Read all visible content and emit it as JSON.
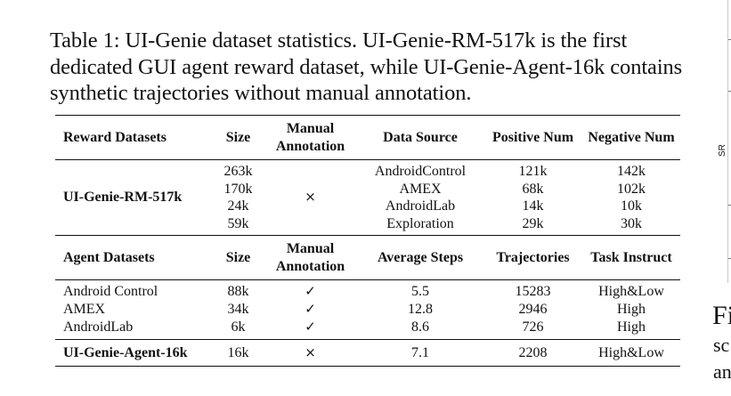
{
  "caption": {
    "label": "Table 1:",
    "text": "UI-Genie dataset statistics. UI-Genie-RM-517k is the first dedicated GUI agent reward dataset, while UI-Genie-Agent-16k contains synthetic trajectories without manual annotation."
  },
  "reward_header": [
    "Reward Datasets",
    "Size",
    "Manual Annotation",
    "Data Source",
    "Positive Num",
    "Negative Num"
  ],
  "reward_row": {
    "name": "UI-Genie-RM-517k",
    "sizes": [
      "263k",
      "170k",
      "24k",
      "59k"
    ],
    "manual": "×",
    "sources": [
      "AndroidControl",
      "AMEX",
      "AndroidLab",
      "Exploration"
    ],
    "positive": [
      "121k",
      "68k",
      "14k",
      "29k"
    ],
    "negative": [
      "142k",
      "102k",
      "10k",
      "30k"
    ]
  },
  "agent_header": [
    "Agent Datasets",
    "Size",
    "Manual Annotation",
    "Average Steps",
    "Trajectories",
    "Task Instruct"
  ],
  "agent_rows": [
    {
      "name": "Android Control",
      "size": "88k",
      "manual": "✓",
      "steps": "5.5",
      "traj": "15283",
      "instruct": "High&Low"
    },
    {
      "name": "AMEX",
      "size": "34k",
      "manual": "✓",
      "steps": "12.8",
      "traj": "2946",
      "instruct": "High"
    },
    {
      "name": "AndroidLab",
      "size": "6k",
      "manual": "✓",
      "steps": "8.6",
      "traj": "726",
      "instruct": "High"
    }
  ],
  "agent_ours": {
    "name": "UI-Genie-Agent-16k",
    "size": "16k",
    "manual": "×",
    "steps": "7.1",
    "traj": "2208",
    "instruct": "High&Low"
  },
  "edge": {
    "axis_label": "SR",
    "fig_letter": "Fi",
    "line1": "sc",
    "line2": "an"
  }
}
